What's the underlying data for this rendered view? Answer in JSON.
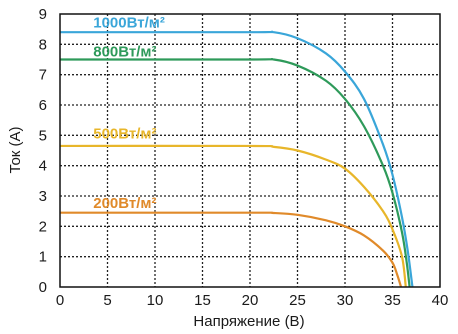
{
  "chart_data": {
    "type": "line",
    "title": "",
    "xlabel": "Напряжение (В)",
    "ylabel": "Ток (А)",
    "xlim": [
      0,
      40
    ],
    "ylim": [
      0,
      9
    ],
    "x_ticks": [
      "0",
      "5",
      "10",
      "15",
      "20",
      "25",
      "30",
      "35",
      "40"
    ],
    "y_ticks": [
      "0",
      "1",
      "2",
      "3",
      "4",
      "5",
      "6",
      "7",
      "8",
      "9"
    ],
    "grid": true,
    "grid_style": "dotted",
    "series": [
      {
        "name": "1000Вт/м²",
        "color": "#3aa6d9",
        "points": [
          [
            0,
            8.4
          ],
          [
            20,
            8.4
          ],
          [
            22.5,
            8.4
          ],
          [
            25,
            8.2
          ],
          [
            28,
            7.7
          ],
          [
            30,
            7.1
          ],
          [
            32,
            6.2
          ],
          [
            34,
            4.7
          ],
          [
            35,
            3.7
          ],
          [
            36,
            2.3
          ],
          [
            36.6,
            1.2
          ],
          [
            37.1,
            0
          ]
        ]
      },
      {
        "name": "800Вт/м²",
        "color": "#2e9a5a",
        "points": [
          [
            0,
            7.5
          ],
          [
            20,
            7.5
          ],
          [
            22.5,
            7.5
          ],
          [
            25,
            7.3
          ],
          [
            28,
            6.8
          ],
          [
            30,
            6.2
          ],
          [
            32,
            5.3
          ],
          [
            34,
            4.0
          ],
          [
            35,
            3.1
          ],
          [
            36,
            1.8
          ],
          [
            36.5,
            0.8
          ],
          [
            36.8,
            0
          ]
        ]
      },
      {
        "name": "500Вт/м²",
        "color": "#e8b62a",
        "points": [
          [
            0,
            4.65
          ],
          [
            20,
            4.65
          ],
          [
            22.5,
            4.62
          ],
          [
            25,
            4.5
          ],
          [
            28,
            4.2
          ],
          [
            30,
            3.9
          ],
          [
            32,
            3.3
          ],
          [
            34,
            2.5
          ],
          [
            35,
            1.9
          ],
          [
            36,
            1.0
          ],
          [
            36.4,
            0
          ]
        ]
      },
      {
        "name": "200Вт/м²",
        "color": "#e08a2a",
        "points": [
          [
            0,
            2.45
          ],
          [
            20,
            2.45
          ],
          [
            22.5,
            2.44
          ],
          [
            25,
            2.38
          ],
          [
            28,
            2.2
          ],
          [
            30,
            2.0
          ],
          [
            32,
            1.7
          ],
          [
            34,
            1.2
          ],
          [
            35,
            0.8
          ],
          [
            35.5,
            0.4
          ],
          [
            35.9,
            0
          ]
        ]
      }
    ],
    "annotations": [
      {
        "text": "1000Вт/м²",
        "series": 0,
        "x": 3.5,
        "y": 8.55
      },
      {
        "text": "800Вт/м²",
        "series": 1,
        "x": 3.5,
        "y": 7.6
      },
      {
        "text": "500Вт/м²",
        "series": 2,
        "x": 3.5,
        "y": 4.9
      },
      {
        "text": "200Вт/м²",
        "series": 3,
        "x": 3.5,
        "y": 2.6
      }
    ]
  }
}
